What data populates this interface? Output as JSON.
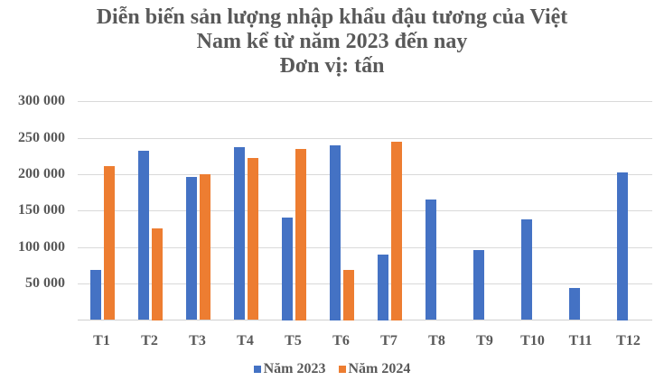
{
  "chart_data": {
    "type": "bar",
    "title": "Diễn biến sản lượng nhập khẩu đậu tương của Việt Nam kể từ năm 2023 đến nay",
    "subtitle": "Đơn vị: tấn",
    "title_lines": [
      "Diễn biến sản lượng nhập khẩu đậu tương của Việt",
      "Nam kể từ năm 2023 đến nay",
      "Đơn vị: tấn"
    ],
    "xlabel": "",
    "ylabel": "",
    "categories": [
      "T1",
      "T2",
      "T3",
      "T4",
      "T5",
      "T6",
      "T7",
      "T8",
      "T9",
      "T10",
      "T11",
      "T12"
    ],
    "series": [
      {
        "name": "Năm 2023",
        "color": "#4472C4",
        "values": [
          68000,
          232000,
          196000,
          237000,
          141000,
          240000,
          90000,
          165000,
          96000,
          138000,
          44000,
          203000
        ]
      },
      {
        "name": "Năm 2024",
        "color": "#ED7D31",
        "values": [
          211000,
          126000,
          200000,
          222000,
          235000,
          69000,
          245000,
          null,
          null,
          null,
          null,
          null
        ]
      }
    ],
    "ylim": [
      0,
      300000
    ],
    "yticks": [
      50000,
      100000,
      150000,
      200000,
      250000,
      300000
    ],
    "ytick_labels": [
      "50 000",
      "100 000",
      "150 000",
      "200 000",
      "250 000",
      "300 000"
    ],
    "grid": true,
    "legend_position": "bottom"
  }
}
